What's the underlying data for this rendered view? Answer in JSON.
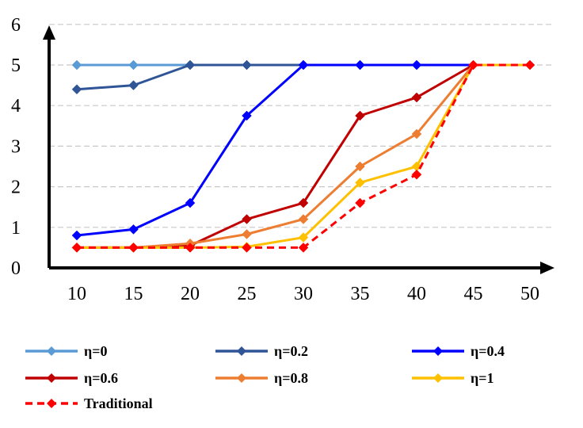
{
  "chart_data": {
    "type": "line",
    "title": "",
    "xlabel": "",
    "ylabel": "",
    "x": [
      10,
      15,
      20,
      25,
      30,
      35,
      40,
      45,
      50
    ],
    "ylim": [
      0,
      6
    ],
    "yticks": [
      0,
      1,
      2,
      3,
      4,
      5,
      6
    ],
    "grid": "horizontal dashed",
    "legend_position": "bottom",
    "series": [
      {
        "name": "η=0",
        "color": "#5B9BD5",
        "dashed": false,
        "values": [
          5,
          5,
          5,
          5,
          5,
          5,
          5,
          null,
          null
        ]
      },
      {
        "name": "η=0.2",
        "color": "#2F5597",
        "dashed": false,
        "values": [
          4.4,
          4.5,
          5,
          5,
          5,
          5,
          5,
          null,
          null
        ]
      },
      {
        "name": "η=0.4",
        "color": "#0000FF",
        "dashed": false,
        "values": [
          0.8,
          0.95,
          1.6,
          3.75,
          5,
          5,
          5,
          5,
          null
        ]
      },
      {
        "name": "η=0.6",
        "color": "#C00000",
        "dashed": false,
        "values": [
          0.5,
          0.5,
          0.55,
          1.2,
          1.6,
          3.75,
          4.2,
          5,
          5
        ]
      },
      {
        "name": "η=0.8",
        "color": "#ED7D31",
        "dashed": false,
        "values": [
          0.5,
          0.5,
          0.6,
          0.83,
          1.2,
          2.5,
          3.3,
          5,
          5
        ]
      },
      {
        "name": "η=1",
        "color": "#FFC000",
        "dashed": false,
        "values": [
          0.5,
          0.5,
          0.5,
          0.52,
          0.75,
          2.1,
          2.5,
          5,
          5
        ]
      },
      {
        "name": "Traditional",
        "color": "#FF0000",
        "dashed": true,
        "values": [
          0.5,
          0.5,
          0.5,
          0.5,
          0.5,
          1.6,
          2.3,
          5,
          5
        ]
      }
    ]
  }
}
